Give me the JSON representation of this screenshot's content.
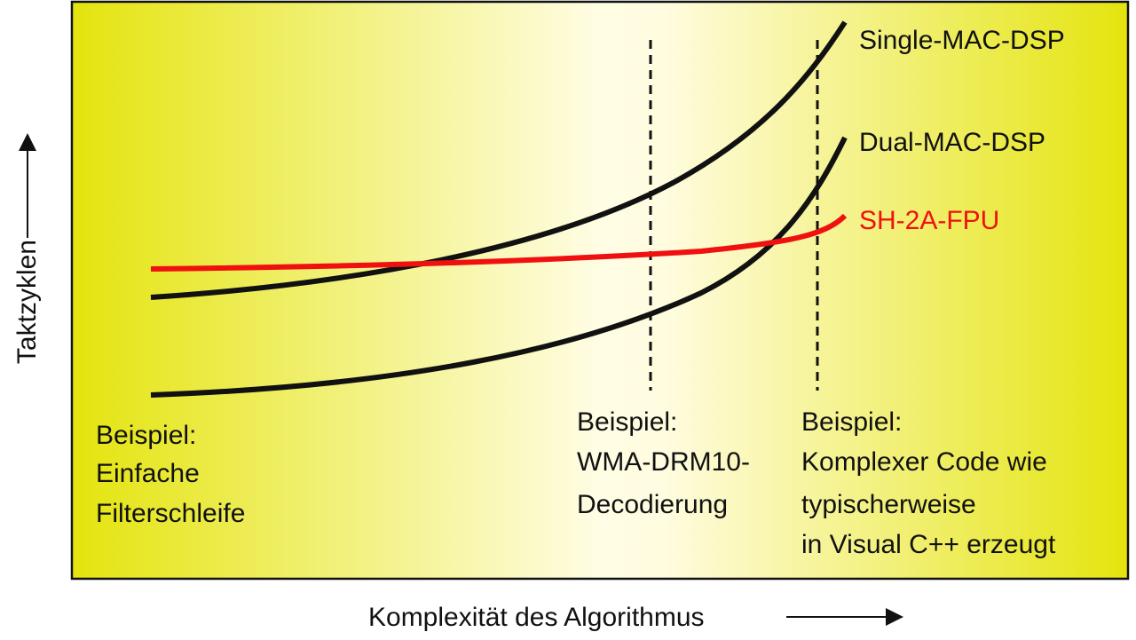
{
  "diagram": {
    "y_axis_label": "Taktzyklen",
    "x_axis_label": "Komplexität des Algorithmus",
    "curves": [
      {
        "label": "Single-MAC-DSP"
      },
      {
        "label": "Dual-MAC-DSP"
      },
      {
        "label": "SH-2A-FPU"
      }
    ],
    "examples": [
      {
        "lines": [
          "Beispiel:",
          "Einfache",
          "Filterschleife"
        ]
      },
      {
        "lines": [
          "Beispiel:",
          "WMA-DRM10-",
          "Decodierung"
        ]
      },
      {
        "lines": [
          "Beispiel:",
          "Komplexer Code wie",
          "typischerweise",
          "in Visual C++ erzeugt"
        ]
      }
    ]
  }
}
